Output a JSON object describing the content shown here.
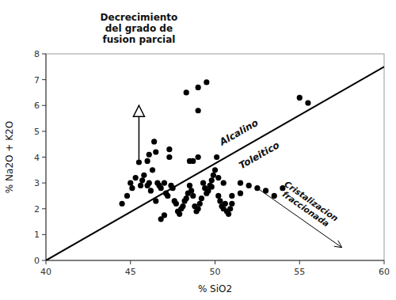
{
  "chart_data": {
    "type": "scatter",
    "xlabel": "% SiO2",
    "ylabel": "% Na2O + K2O",
    "xlim": [
      40,
      60
    ],
    "ylim": [
      0,
      8
    ],
    "xticks": [
      40,
      45,
      50,
      55,
      60
    ],
    "yticks": [
      0,
      1,
      2,
      3,
      4,
      5,
      6,
      7,
      8
    ],
    "grid": false,
    "series": [
      {
        "type": "scatter",
        "color": "#000000",
        "x": [
          44.5,
          44.8,
          45.0,
          45.1,
          45.3,
          45.5,
          45.6,
          45.7,
          45.8,
          46.0,
          46.1,
          46.2,
          46.3,
          46.4,
          46.5,
          46.6,
          46.7,
          46.8,
          47.0,
          47.1,
          47.2,
          47.3,
          47.4,
          47.5,
          47.6,
          47.7,
          47.8,
          47.9,
          48.0,
          48.1,
          48.2,
          48.3,
          48.4,
          48.5,
          48.6,
          48.7,
          48.8,
          48.9,
          49.0,
          49.1,
          49.2,
          49.3,
          49.4,
          49.5,
          49.6,
          49.7,
          49.8,
          49.9,
          50.0,
          50.1,
          50.2,
          50.3,
          50.4,
          50.5,
          50.6,
          50.7,
          50.8,
          50.9,
          51.0,
          48.3,
          49.0,
          49.5,
          49.0,
          52.0,
          52.5,
          53.0,
          51.5,
          51.0,
          53.5,
          54.0,
          55.0,
          55.5,
          47.3,
          46.1,
          48.7,
          49.0,
          50.5,
          50.2,
          49.8,
          51.5,
          46.5,
          47.0,
          46.8,
          46.0,
          48.5
        ],
        "values": [
          2.2,
          2.5,
          3.0,
          2.8,
          3.2,
          3.8,
          2.9,
          3.1,
          3.3,
          2.9,
          3.0,
          2.7,
          3.5,
          4.6,
          4.2,
          3.0,
          2.9,
          2.8,
          3.0,
          2.6,
          2.5,
          4.3,
          2.9,
          2.8,
          2.3,
          2.2,
          1.9,
          1.8,
          2.0,
          2.1,
          2.3,
          2.4,
          2.6,
          2.9,
          2.7,
          2.5,
          2.1,
          1.9,
          2.0,
          2.2,
          2.4,
          3.0,
          2.8,
          2.6,
          2.7,
          2.9,
          3.1,
          3.3,
          3.5,
          4.0,
          2.5,
          2.3,
          2.1,
          2.0,
          2.2,
          1.9,
          1.8,
          2.0,
          2.2,
          6.5,
          6.7,
          6.9,
          5.8,
          2.9,
          2.8,
          2.7,
          2.6,
          2.5,
          2.5,
          2.8,
          6.3,
          6.1,
          4.0,
          4.1,
          3.85,
          4.0,
          3.0,
          3.2,
          2.85,
          3.0,
          2.3,
          1.75,
          1.6,
          3.85,
          3.85
        ]
      },
      {
        "type": "line",
        "color": "#000000",
        "x": [
          40,
          60
        ],
        "values": [
          0,
          7.5
        ]
      }
    ],
    "annotations": [
      {
        "text": "Alcalino",
        "x": 51.5,
        "y": 4.85
      },
      {
        "text": "Toleitico",
        "x": 52.5,
        "y": 4.2
      },
      {
        "text": "Cristalizacion\nfraccionada",
        "x": [
          52.5,
          57.5
        ],
        "y": [
          2.8,
          0.5
        ]
      },
      {
        "text": "Decrecimiento\ndel grado de\nfusion parcial",
        "x": [
          45.5,
          45.5
        ],
        "y": [
          3.9,
          6.0
        ]
      }
    ]
  }
}
